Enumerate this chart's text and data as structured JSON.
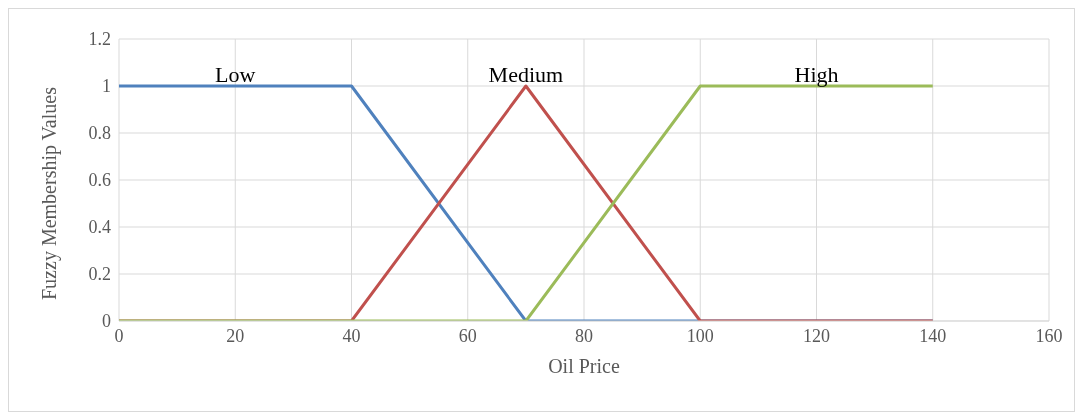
{
  "chart_data": {
    "type": "line",
    "xlabel": "Oil Price",
    "ylabel": "Fuzzy Membership Values",
    "series": [
      {
        "name": "Low",
        "color": "#4f81bd",
        "x": [
          0,
          40,
          70,
          140
        ],
        "values": [
          1,
          1,
          0,
          0
        ]
      },
      {
        "name": "Medium",
        "color": "#c0504d",
        "x": [
          0,
          40,
          70,
          100,
          140
        ],
        "values": [
          0,
          0,
          1,
          0,
          0
        ]
      },
      {
        "name": "High",
        "color": "#9bbb59",
        "x": [
          0,
          70,
          100,
          140
        ],
        "values": [
          0,
          0,
          1,
          1
        ]
      }
    ],
    "xlim": [
      0,
      160
    ],
    "xticks": [
      0,
      20,
      40,
      60,
      80,
      100,
      120,
      140,
      160
    ],
    "ylim": [
      0,
      1.2
    ],
    "yticks": [
      0,
      0.2,
      0.4,
      0.6,
      0.8,
      1,
      1.2
    ],
    "grid": true,
    "legend": false,
    "marker": "none",
    "line_style": "solid"
  }
}
